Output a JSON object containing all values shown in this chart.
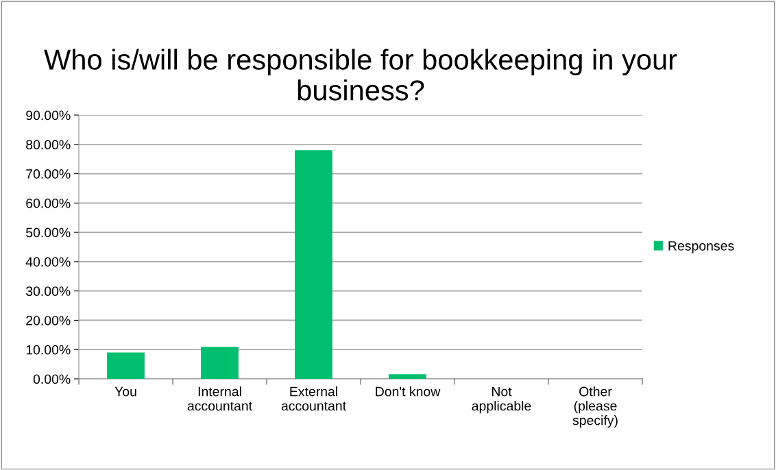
{
  "chart_data": {
    "type": "bar",
    "title": "Who is/will be responsible for bookkeeping in your business?",
    "categories": [
      "You",
      "Internal accountant",
      "External accountant",
      "Don't know",
      "Not applicable",
      "Other (please specify)"
    ],
    "series": [
      {
        "name": "Responses",
        "color": "#00bf6f",
        "values": [
          9.0,
          10.9,
          78.0,
          1.6,
          0,
          0
        ]
      }
    ],
    "ylim": [
      0,
      90
    ],
    "yticks": [
      {
        "value": 0,
        "label": "0.00%"
      },
      {
        "value": 10,
        "label": "10.00%"
      },
      {
        "value": 20,
        "label": "20.00%"
      },
      {
        "value": 30,
        "label": "30.00%"
      },
      {
        "value": 40,
        "label": "40.00%"
      },
      {
        "value": 50,
        "label": "50.00%"
      },
      {
        "value": 60,
        "label": "60.00%"
      },
      {
        "value": 70,
        "label": "70.00%"
      },
      {
        "value": 80,
        "label": "80.00%"
      },
      {
        "value": 90,
        "label": "90.00%"
      }
    ],
    "grid": "y",
    "legend": "right"
  }
}
